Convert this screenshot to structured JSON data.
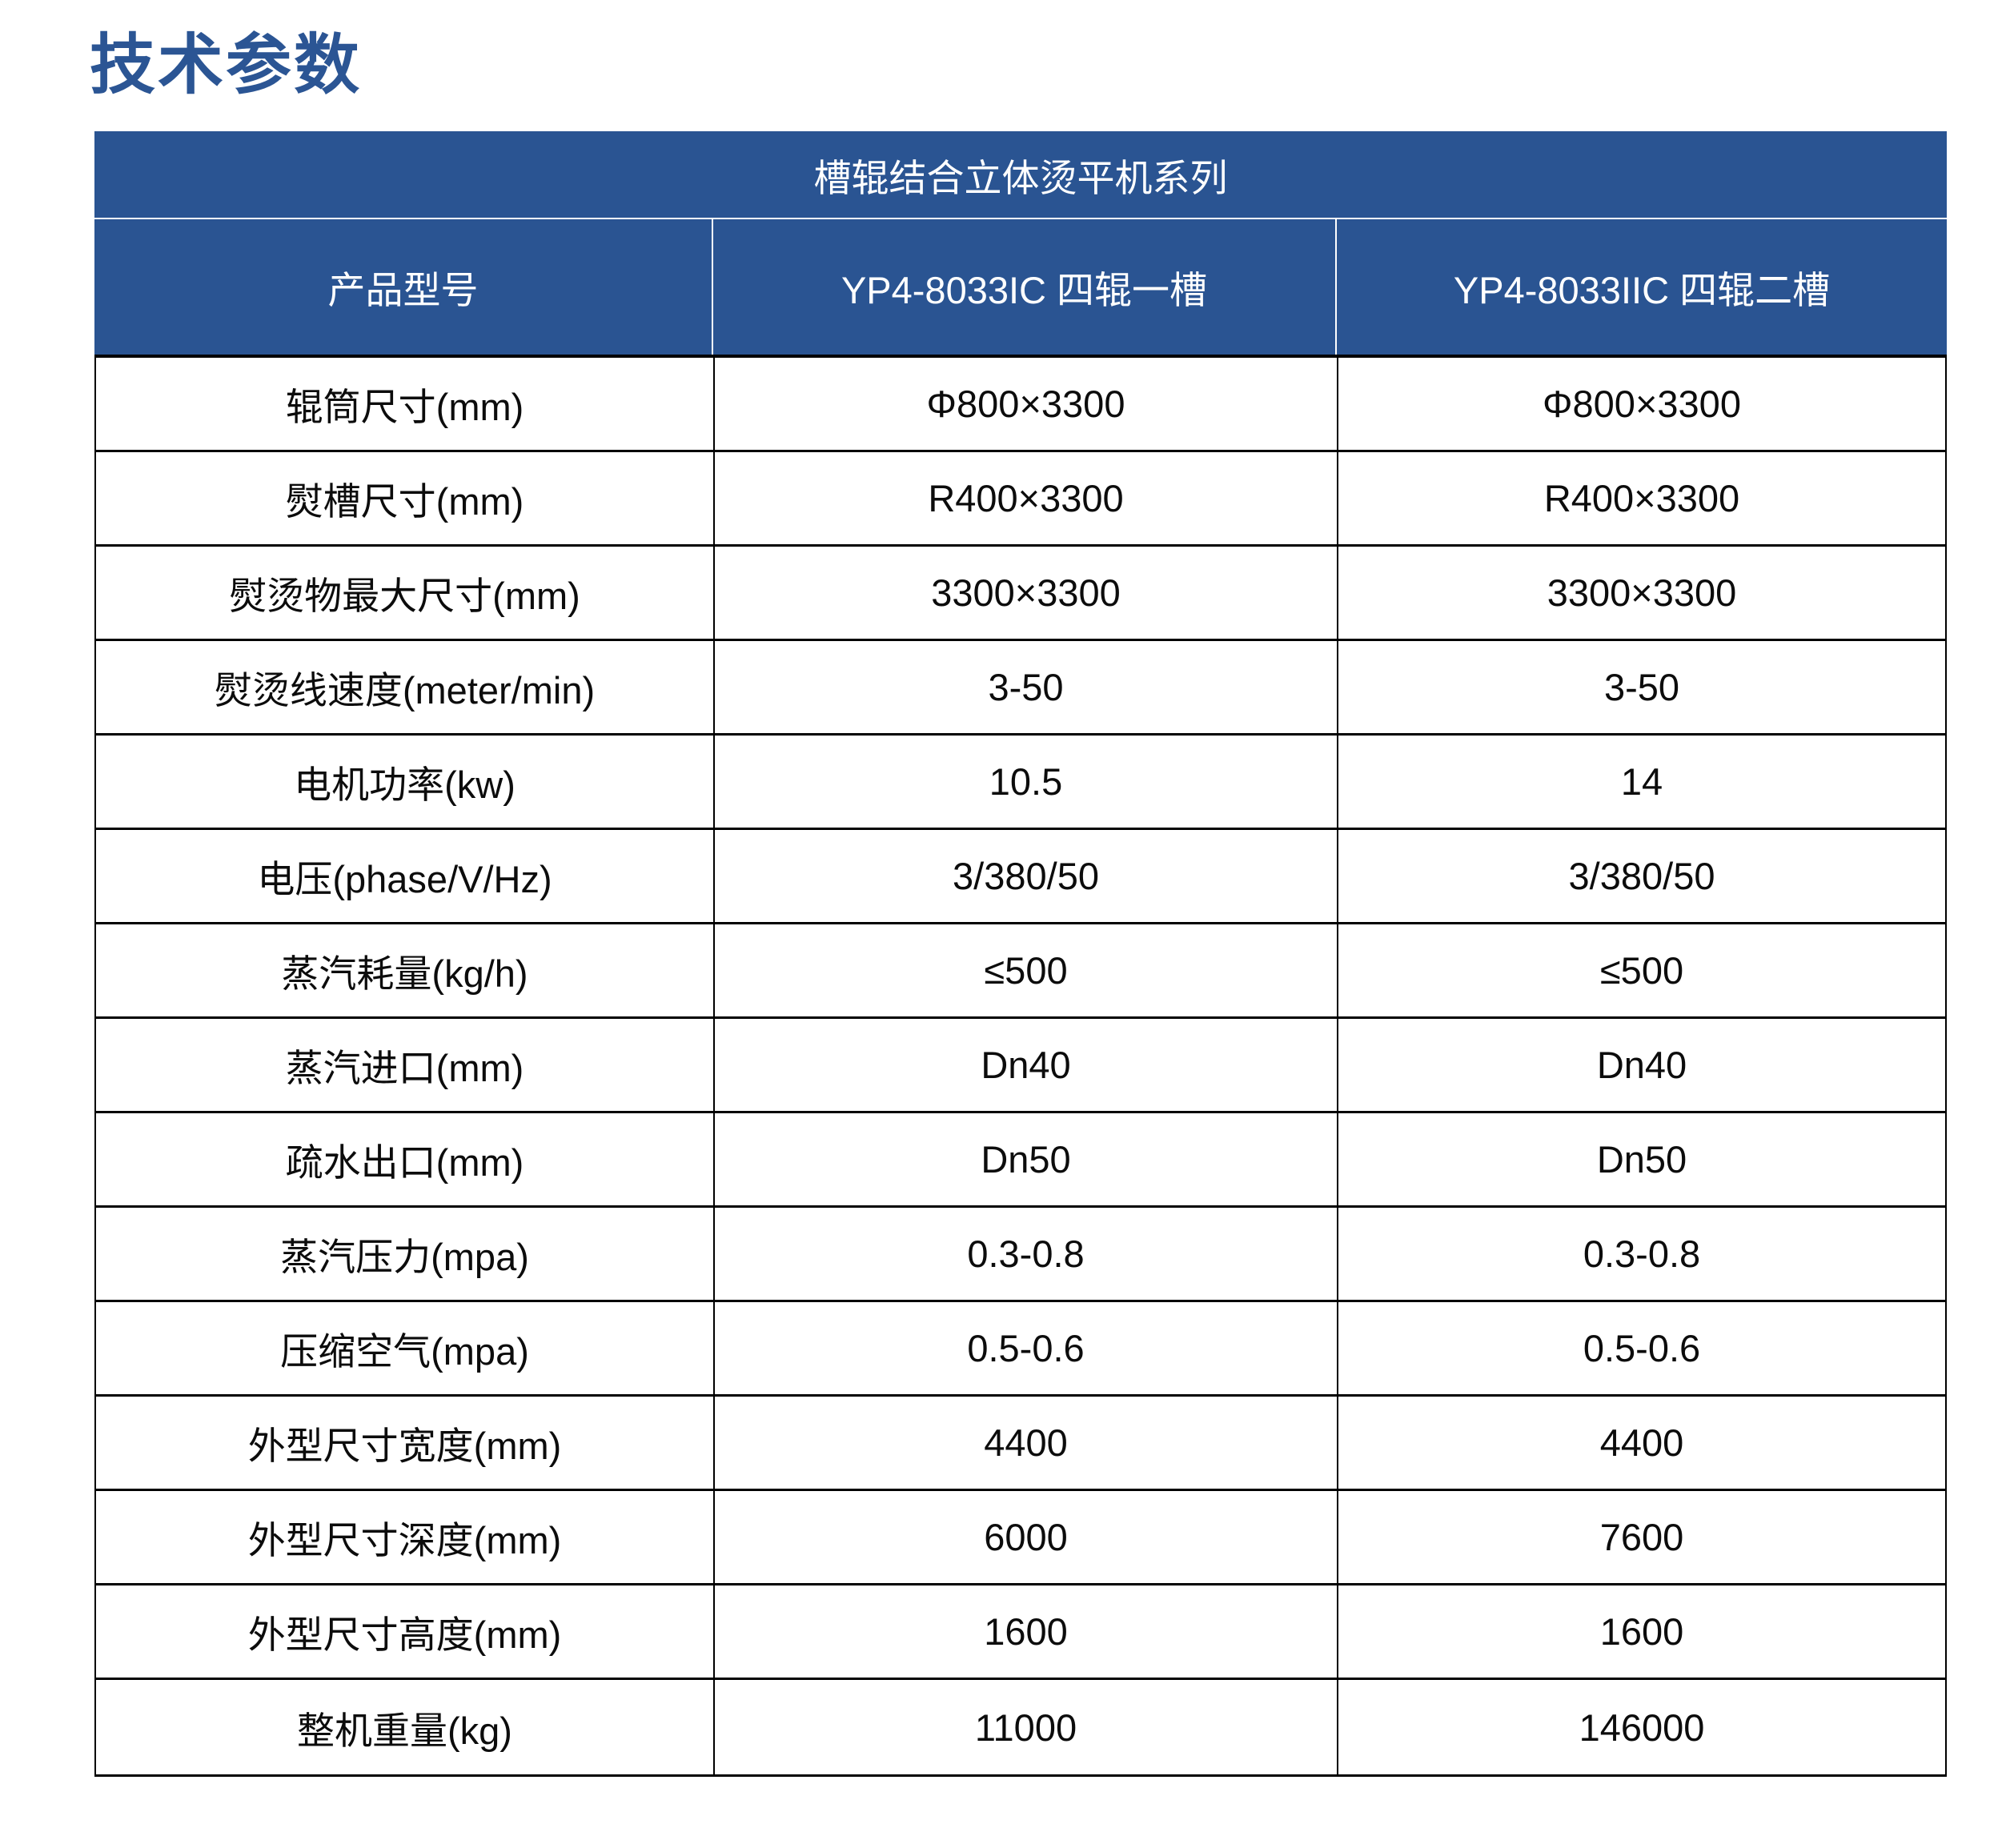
{
  "page": {
    "title": "技术参数"
  },
  "table": {
    "series_header": "槽辊结合立体烫平机系列",
    "columns": [
      "产品型号",
      "YP4-8033IC 四辊一槽",
      "YP4-8033IIC 四辊二槽"
    ],
    "rows": [
      {
        "label": "辊筒尺寸(mm)",
        "values": [
          "Φ800×3300",
          "Φ800×3300"
        ]
      },
      {
        "label": "熨槽尺寸(mm)",
        "values": [
          "R400×3300",
          "R400×3300"
        ]
      },
      {
        "label": "熨烫物最大尺寸(mm)",
        "values": [
          "3300×3300",
          "3300×3300"
        ]
      },
      {
        "label": "熨烫线速度(meter/min)",
        "values": [
          "3-50",
          "3-50"
        ]
      },
      {
        "label": "电机功率(kw)",
        "values": [
          "10.5",
          "14"
        ]
      },
      {
        "label": "电压(phase/V/Hz)",
        "values": [
          "3/380/50",
          "3/380/50"
        ]
      },
      {
        "label": "蒸汽耗量(kg/h)",
        "values": [
          "≤500",
          "≤500"
        ]
      },
      {
        "label": "蒸汽进口(mm)",
        "values": [
          "Dn40",
          "Dn40"
        ]
      },
      {
        "label": "疏水出口(mm)",
        "values": [
          "Dn50",
          "Dn50"
        ]
      },
      {
        "label": "蒸汽压力(mpa)",
        "values": [
          "0.3-0.8",
          "0.3-0.8"
        ]
      },
      {
        "label": "压缩空气(mpa)",
        "values": [
          "0.5-0.6",
          "0.5-0.6"
        ]
      },
      {
        "label": "外型尺寸宽度(mm)",
        "values": [
          "4400",
          "4400"
        ]
      },
      {
        "label": "外型尺寸深度(mm)",
        "values": [
          "6000",
          "7600"
        ]
      },
      {
        "label": "外型尺寸高度(mm)",
        "values": [
          "1600",
          "1600"
        ]
      },
      {
        "label": "整机重量(kg)",
        "values": [
          "11000",
          "146000"
        ]
      }
    ]
  },
  "colors": {
    "title_blue": "#2B5594",
    "accent_blue": "#2A5492",
    "header_text": "#FFFFFF",
    "border_black": "#000000"
  }
}
